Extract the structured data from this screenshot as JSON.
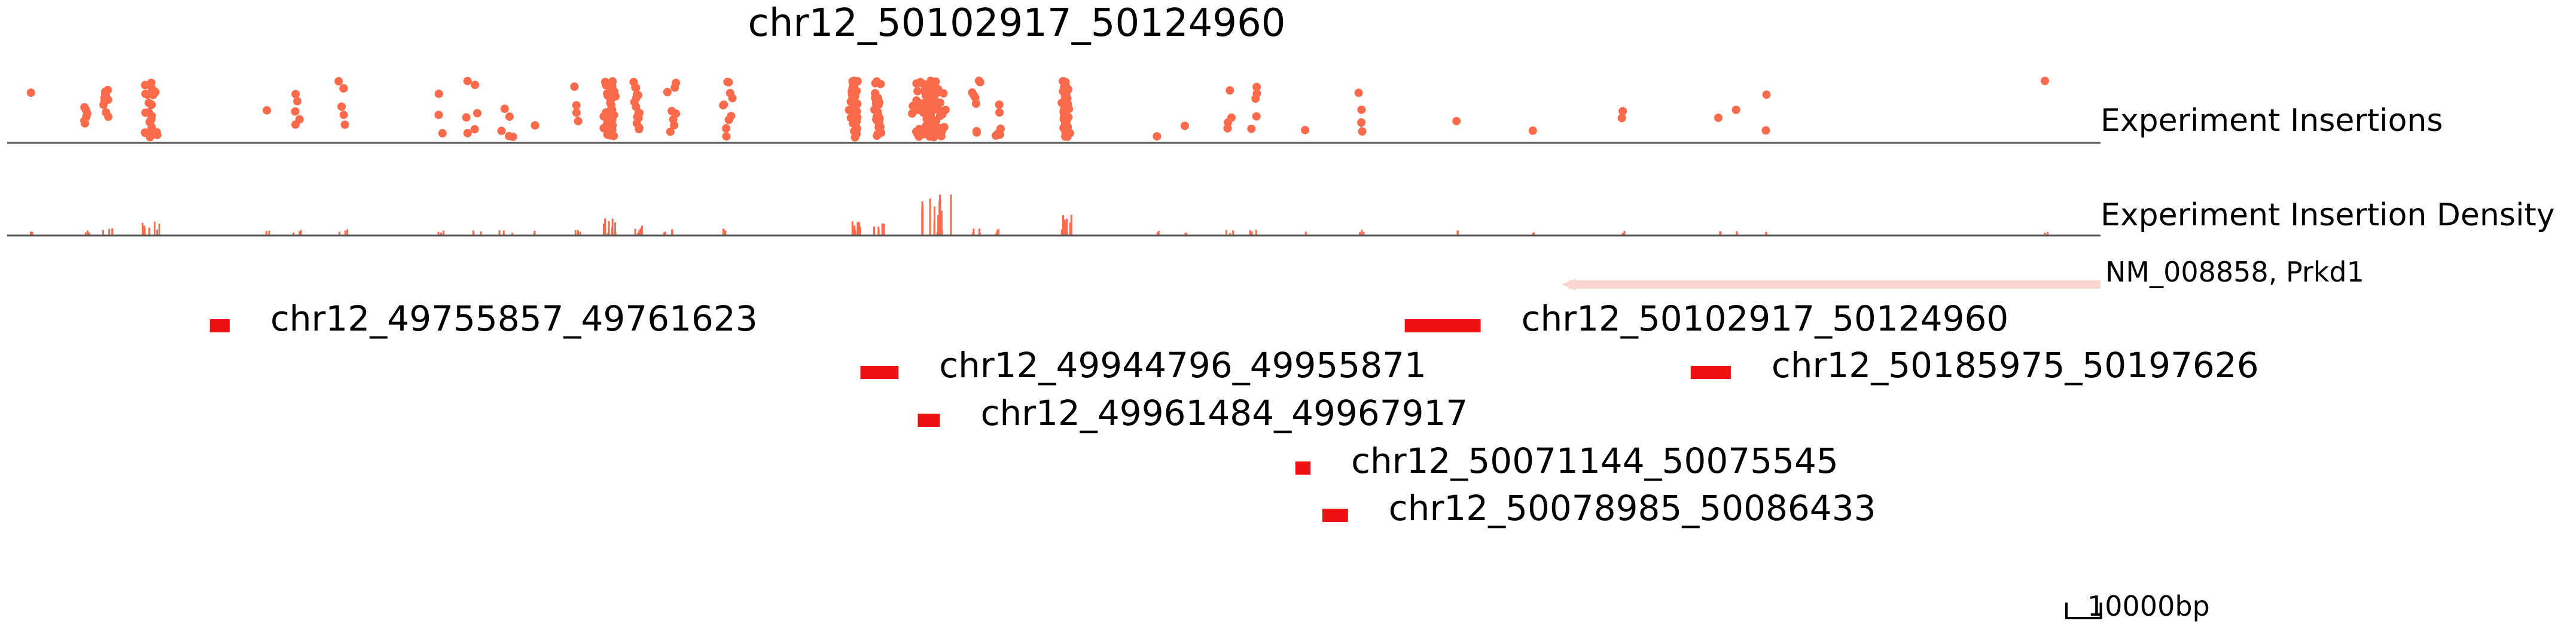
{
  "chart_data": {
    "type": "scatter",
    "title": "chr12_50102917_50124960",
    "xrange": [
      49697000,
      50305000
    ],
    "colors": {
      "insertion": "#fb6a4a",
      "peak": "#ee1111",
      "gene": "#fbd5cf",
      "axis": "#555555"
    },
    "tracks": [
      {
        "name": "Experiment Insertions",
        "type": "scatter"
      },
      {
        "name": "Experiment Insertion Density",
        "type": "bar"
      },
      {
        "name": "NM_008858, Prkd1",
        "type": "gene"
      }
    ],
    "insertion_clusters": [
      {
        "center": 49704000,
        "spread": 500,
        "count": 1
      },
      {
        "center": 49719500,
        "spread": 1500,
        "count": 6
      },
      {
        "center": 49725500,
        "spread": 1800,
        "count": 10
      },
      {
        "center": 49738500,
        "spread": 2500,
        "count": 28
      },
      {
        "center": 49772500,
        "spread": 500,
        "count": 1
      },
      {
        "center": 49781000,
        "spread": 1200,
        "count": 5
      },
      {
        "center": 49794500,
        "spread": 1500,
        "count": 6
      },
      {
        "center": 49823000,
        "spread": 1500,
        "count": 3
      },
      {
        "center": 49832000,
        "spread": 2500,
        "count": 6
      },
      {
        "center": 49842000,
        "spread": 3000,
        "count": 5
      },
      {
        "center": 49850000,
        "spread": 500,
        "count": 1
      },
      {
        "center": 49862000,
        "spread": 1500,
        "count": 4
      },
      {
        "center": 49872000,
        "spread": 2000,
        "count": 40
      },
      {
        "center": 49880000,
        "spread": 1500,
        "count": 16
      },
      {
        "center": 49890000,
        "spread": 2500,
        "count": 8
      },
      {
        "center": 49906000,
        "spread": 2500,
        "count": 10
      },
      {
        "center": 49943000,
        "spread": 1800,
        "count": 35
      },
      {
        "center": 49950000,
        "spread": 1500,
        "count": 25
      },
      {
        "center": 49965000,
        "spread": 6000,
        "count": 120
      },
      {
        "center": 49978500,
        "spread": 1800,
        "count": 8
      },
      {
        "center": 49985000,
        "spread": 1500,
        "count": 6
      },
      {
        "center": 50004500,
        "spread": 1500,
        "count": 55
      },
      {
        "center": 50031000,
        "spread": 400,
        "count": 1
      },
      {
        "center": 50039000,
        "spread": 400,
        "count": 1
      },
      {
        "center": 50052000,
        "spread": 1500,
        "count": 4
      },
      {
        "center": 50059000,
        "spread": 2000,
        "count": 5
      },
      {
        "center": 50074000,
        "spread": 300,
        "count": 1
      },
      {
        "center": 50090000,
        "spread": 1000,
        "count": 4
      },
      {
        "center": 50118000,
        "spread": 300,
        "count": 1
      },
      {
        "center": 50140000,
        "spread": 300,
        "count": 1
      },
      {
        "center": 50166000,
        "spread": 600,
        "count": 2
      },
      {
        "center": 50194000,
        "spread": 400,
        "count": 1
      },
      {
        "center": 50199000,
        "spread": 400,
        "count": 1
      },
      {
        "center": 50208000,
        "spread": 800,
        "count": 2
      },
      {
        "center": 50289000,
        "spread": 500,
        "count": 1
      }
    ],
    "gene": {
      "name": "NM_008858, Prkd1",
      "start": 50148500,
      "end": 50305000,
      "strand": "-"
    },
    "peaks": [
      {
        "label": "chr12_49755857_49761623",
        "start": 49755857,
        "end": 49761623,
        "row": 0
      },
      {
        "label": "chr12_50102917_50124960",
        "start": 50102917,
        "end": 50124960,
        "row": 0
      },
      {
        "label": "chr12_49944796_49955871",
        "start": 49944796,
        "end": 49955871,
        "row": 1
      },
      {
        "label": "chr12_50185975_50197626",
        "start": 50185975,
        "end": 50197626,
        "row": 1
      },
      {
        "label": "chr12_49961484_49967917",
        "start": 49961484,
        "end": 49967917,
        "row": 2
      },
      {
        "label": "chr12_50071144_50075545",
        "start": 50071144,
        "end": 50075545,
        "row": 3
      },
      {
        "label": "chr12_50078985_50086433",
        "start": 50078985,
        "end": 50086433,
        "row": 4
      }
    ],
    "scale_bar": {
      "length": 10000,
      "label": "10000bp"
    }
  }
}
